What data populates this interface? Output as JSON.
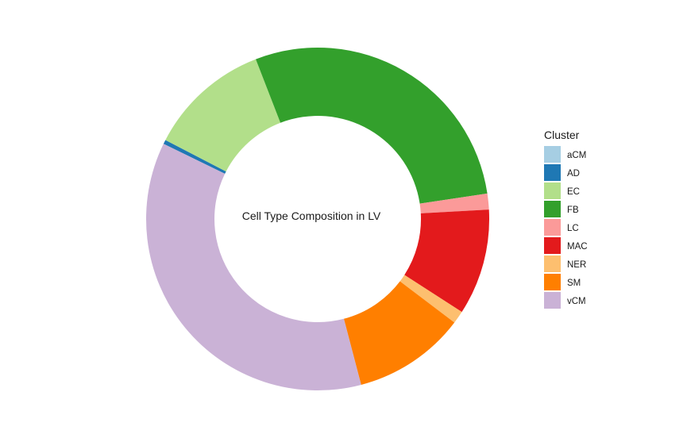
{
  "chart_data": {
    "type": "pie",
    "variant": "donut",
    "center_label": "Cell Type Composition in LV",
    "legend": {
      "title": "Cluster",
      "placement": "right"
    },
    "slices": [
      {
        "label": "aCM",
        "value": 0.0,
        "color": "#A6CEE3"
      },
      {
        "label": "AD",
        "value": 0.4,
        "color": "#1F78B4"
      },
      {
        "label": "EC",
        "value": 11.5,
        "color": "#B2DF8A"
      },
      {
        "label": "FB",
        "value": 28.5,
        "color": "#33A02C"
      },
      {
        "label": "LC",
        "value": 1.5,
        "color": "#FB9A99"
      },
      {
        "label": "MAC",
        "value": 10.0,
        "color": "#E31A1C"
      },
      {
        "label": "NER",
        "value": 1.2,
        "color": "#FDBF6F"
      },
      {
        "label": "SM",
        "value": 10.6,
        "color": "#FF7F00"
      },
      {
        "label": "vCM",
        "value": 36.3,
        "color": "#CAB2D6"
      }
    ]
  }
}
